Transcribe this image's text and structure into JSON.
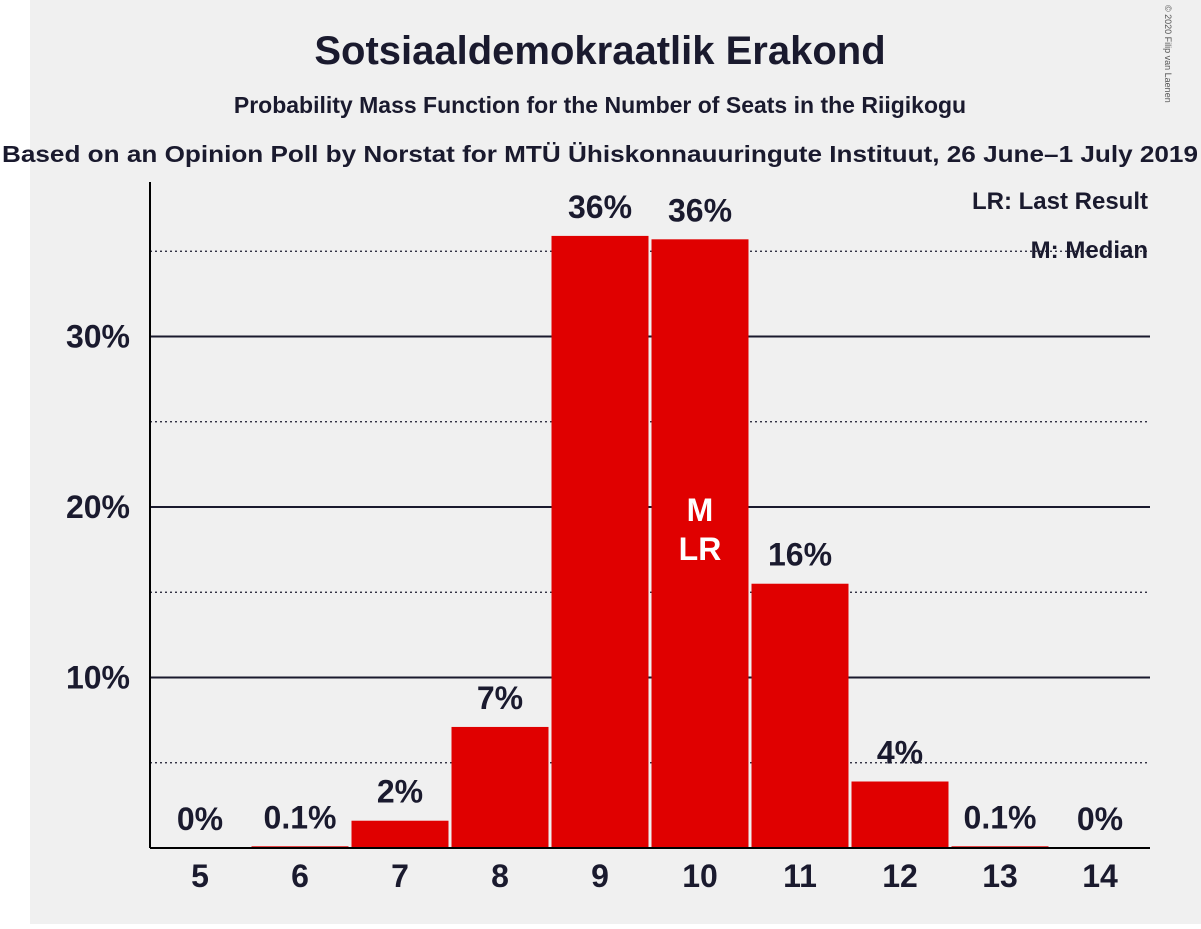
{
  "copyright": "© 2020 Filip van Laenen",
  "chart_data": {
    "type": "bar",
    "title": "Sotsiaaldemokraatlik Erakond",
    "subtitle": "Probability Mass Function for the Number of Seats in the Riigikogu",
    "source": "Based on an Opinion Poll by Norstat for MTÜ Ühiskonnauuringute Instituut, 26 June–1 July 2019",
    "categories": [
      "5",
      "6",
      "7",
      "8",
      "9",
      "10",
      "11",
      "12",
      "13",
      "14"
    ],
    "values": [
      0,
      0.1,
      1.6,
      7.1,
      35.9,
      35.7,
      15.5,
      3.9,
      0.1,
      0
    ],
    "data_labels": [
      "0%",
      "0.1%",
      "2%",
      "7%",
      "36%",
      "36%",
      "16%",
      "4%",
      "0.1%",
      "0%"
    ],
    "ylim": [
      0,
      39
    ],
    "yticks": [
      10,
      20,
      30
    ],
    "ytick_labels": [
      "10%",
      "20%",
      "30%"
    ],
    "minor_gridlines": [
      5,
      15,
      25,
      35
    ],
    "bar_color": "#e00000",
    "background": "#f0f0f0",
    "median_category": "10",
    "last_result_category": "10",
    "median_marker": "M",
    "last_result_marker": "LR",
    "legend": {
      "position": "top-right",
      "last_result": "LR: Last Result",
      "median": "M: Median"
    }
  }
}
